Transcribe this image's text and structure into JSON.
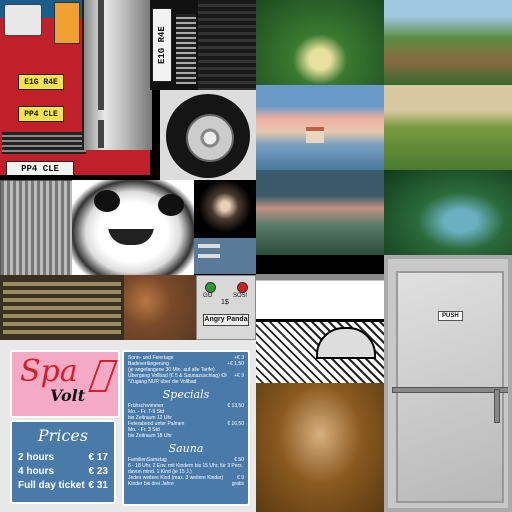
{
  "atlas": {
    "bus": {
      "plate_front_top": "E1G R4E",
      "plate_front_bottom": "PP4 CLE",
      "plate_side": "E1G R4E",
      "plate_rear": "PP4 CLE"
    },
    "panel": {
      "go_label": "GO",
      "sos_label": "SOS!",
      "price_label": "1$",
      "brand_label": "Angry Panda"
    },
    "door": {
      "push_label": "PUSH"
    },
    "spa_sign": {
      "logo_main": "Spa",
      "logo_sub": "Volt",
      "prices_title": "Prices",
      "prices": [
        {
          "label": "2 hours",
          "value": "€ 17"
        },
        {
          "label": "4 hours",
          "value": "€ 23"
        },
        {
          "label": "Full day ticket",
          "value": "€ 31"
        }
      ],
      "menu_top": [
        {
          "label": "Sonn- und Feiertage",
          "value": "+€ 3"
        },
        {
          "label": "Badeverlängerung",
          "value": "+€ 1,50"
        },
        {
          "label": "(je angefangene 30 Min. auf alle Tarife)",
          "value": ""
        },
        {
          "label": "Übergang Vollbad (€ 5 & Saunazuschlag) €9",
          "value": "+€ 9"
        },
        {
          "label": "*Zugang NUR über die Vollbad",
          "value": ""
        }
      ],
      "specials_title": "Specials",
      "menu_specials": [
        {
          "label": "Frühschwimmer",
          "value": "€ 13,50"
        },
        {
          "label": "Mo. - Fr. 7-9 Std",
          "value": ""
        },
        {
          "label": "bis Zeitraum 12 Uhr",
          "value": ""
        },
        {
          "label": "Feierabend unter Palmen",
          "value": "€ 16,50"
        },
        {
          "label": "Mo. - Fr. 3 Std",
          "value": ""
        },
        {
          "label": "bis Zeitraum 18 Uhr",
          "value": ""
        }
      ],
      "sauna_title": "Sauna",
      "menu_sauna": [
        {
          "label": "FamilienSamstag",
          "value": "€ 50"
        },
        {
          "label": "6 - 18 Uhr, 2 Erw. mit Kindern bis 15 Uhr, für 3 Pers.",
          "value": ""
        },
        {
          "label": "davon mind. 1 Kind (je 15 J.)",
          "value": ""
        },
        {
          "label": "Jedes weitere Kind (max. 3 weitere Kinder)",
          "value": "€ 9"
        },
        {
          "label": "Kinder bis drei Jahre",
          "value": "gratis"
        }
      ]
    },
    "colors": {
      "bus_red": "#c0202a",
      "plate_yellow": "#f4e24a",
      "spa_pink": "#f4aac4",
      "spa_blue": "#4a7aaa",
      "spa_red": "#d0202a"
    }
  }
}
